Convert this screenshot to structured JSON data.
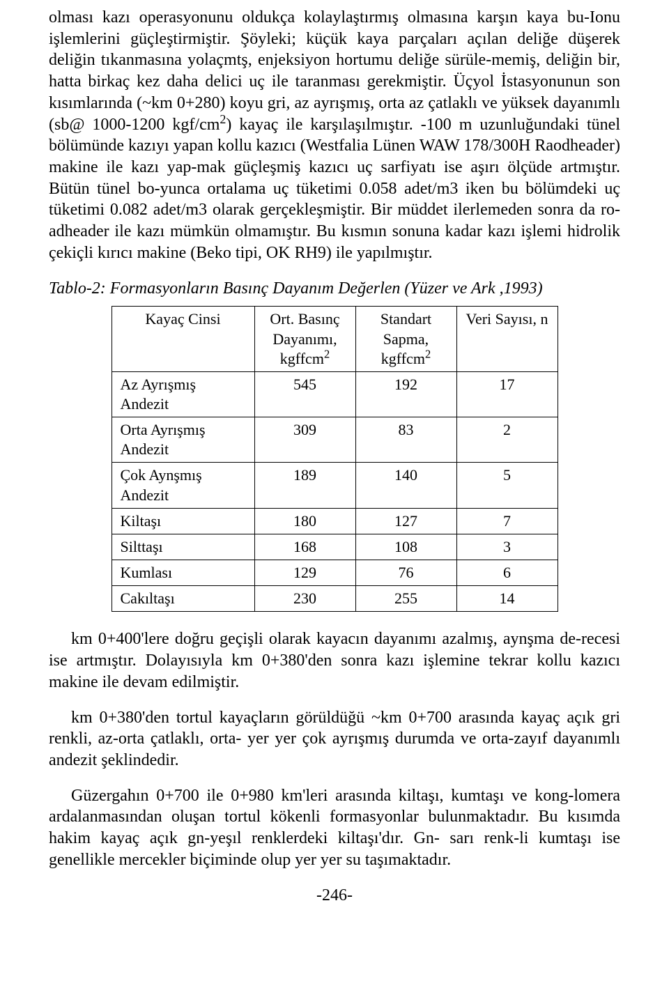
{
  "paragraph1_html": "olması kazı operasyonunu oldukça kolaylaştırmış olmasına karşın kaya bu-Ionu işlemlerini güçleştirmiştir. Şöyleki; küçük kaya parçaları açılan deliğe düşerek deliğin tıkanmasına yolaçmtş, enjeksiyon hortumu deliğe sürüle-memiş, deliğin bir, hatta birkaç kez daha delici uç ile taranması gerekmiştir. Üçyol İstasyonunun son kısımlarında (~km 0+280) koyu gri, az ayrışmış, orta az çatlaklı ve yüksek dayanımlı (sb@ 1000-1200 kgf/cm<sup>2</sup>) kayaç ile karşılaşılmıştır. -100 m uzunluğundaki tünel bölümünde kazıyı yapan kollu kazıcı (Westfalia Lünen WAW 178/300H Raodheader) makine ile kazı yap-mak güçleşmiş kazıcı uç sarfiyatı ise aşırı ölçüde artmıştır. Bütün tünel bo-yunca ortalama uç tüketimi 0.058 adet/m3 iken bu bölümdeki uç tüketimi 0.082 adet/m3 olarak gerçekleşmiştir. Bir müddet ilerlemeden sonra da ro-adheader ile kazı mümkün olmamıştır. Bu kısmın sonuna kadar kazı işlemi hidrolik çekiçli kırıcı makine (Beko tipi, OK RH9) ile yapılmıştır.",
  "table_caption": "Tablo-2: Formasyonların Basınç Dayanım Değerlen (Yüzer ve Ark ,1993)",
  "table": {
    "columns": [
      "Kayaç Cinsi",
      "Ort. Basınç Dayanımı, kgffcm",
      "Standart Sapma, kgffcm",
      "Veri Sayısı, n"
    ],
    "col_sup": [
      "",
      "2",
      "2",
      ""
    ],
    "rows": [
      [
        "Az Ayrışmış Andezit",
        "545",
        "192",
        "17"
      ],
      [
        "Orta Ayrışmış Andezit",
        "309",
        "83",
        "2"
      ],
      [
        "Çok Aynşmış Andezit",
        "189",
        "140",
        "5"
      ],
      [
        "Kiltaşı",
        "180",
        "127",
        "7"
      ],
      [
        "Silttaşı",
        "168",
        "108",
        "3"
      ],
      [
        "Kumlası",
        "129",
        "76",
        "6"
      ],
      [
        "Cakıltaşı",
        "230",
        "255",
        "14"
      ]
    ]
  },
  "paragraph2": "km 0+400'lere doğru geçişli olarak kayacın dayanımı azalmış, aynşma de-recesi ise artmıştır. Dolayısıyla km 0+380'den sonra kazı işlemine tekrar kollu kazıcı makine ile devam edilmiştir.",
  "paragraph3": "km 0+380'den tortul kayaçların görüldüğü ~km 0+700 arasında kayaç açık gri renkli, az-orta çatlaklı, orta- yer yer çok ayrışmış durumda ve orta-zayıf dayanımlı andezit şeklindedir.",
  "paragraph4": "Güzergahın 0+700 ile 0+980 km'leri arasında kiltaşı, kumtaşı ve kong-lomera ardalanmasından oluşan tortul kökenli formasyonlar bulunmaktadır. Bu kısımda hakim kayaç açık gn-yeşıl renklerdeki kiltaşı'dır. Gn- sarı renk-li kumtaşı ise genellikle mercekler biçiminde olup yer yer su taşımaktadır.",
  "page_number": "-246-"
}
